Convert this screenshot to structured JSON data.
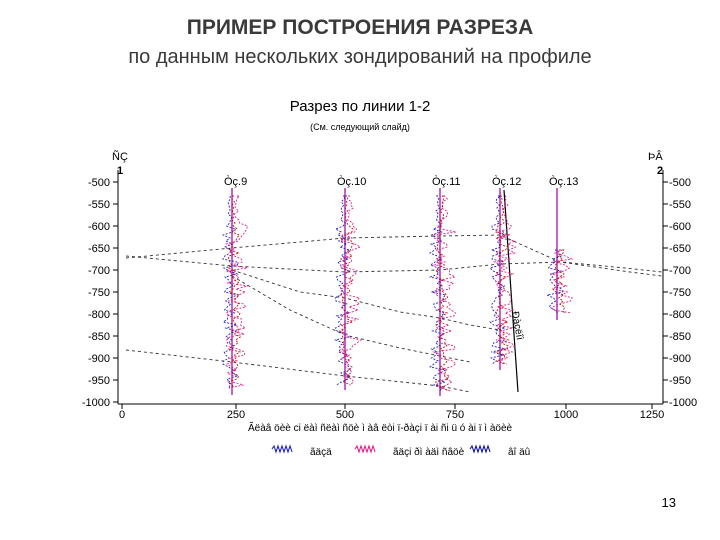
{
  "slide": {
    "title": "ПРИМЕР ПОСТРОЕНИЯ РАЗРЕЗА",
    "subtitle": "по данным нескольких зондирований на профиле",
    "page_number": "13"
  },
  "section": {
    "title": "Разрез по линии 1-2",
    "note": "(См. следующий слайд)",
    "left_end_label": "ÑÇ",
    "left_end_number": "1",
    "right_end_label": "ÞÂ",
    "right_end_number": "2",
    "y_ticks": [
      "-500",
      "-550",
      "-600",
      "-650",
      "-700",
      "-750",
      "-800",
      "-850",
      "-900",
      "-950",
      "-1000"
    ],
    "x_ticks": [
      "0",
      "250",
      "500",
      "750",
      "1000",
      "1250"
    ],
    "x_caption": "Ãëàâ öèè ci ëàì ñëàì ñöè ì àâ ëòi ï-ðàçi ï ài ñi ü ó ài ï ì àöèè",
    "fault_label": "Ðàçëîì",
    "stations": [
      "Òç.9",
      "Òç.10",
      "Òç.11",
      "Òç.12",
      "Òç.13"
    ],
    "legend": [
      {
        "label": "ãäçä",
        "color": "#2020c8"
      },
      {
        "label": "ãäçi ðì àäì ñâöè",
        "color": "#e0208a"
      },
      {
        "label": "âî äû",
        "color": "#1010a0"
      }
    ],
    "colors": {
      "sounding_blue": "#2020c8",
      "sounding_magenta": "#e0208a",
      "sounding_red": "#d01010",
      "station_line": "#b020b0",
      "fault": "#000000"
    }
  }
}
